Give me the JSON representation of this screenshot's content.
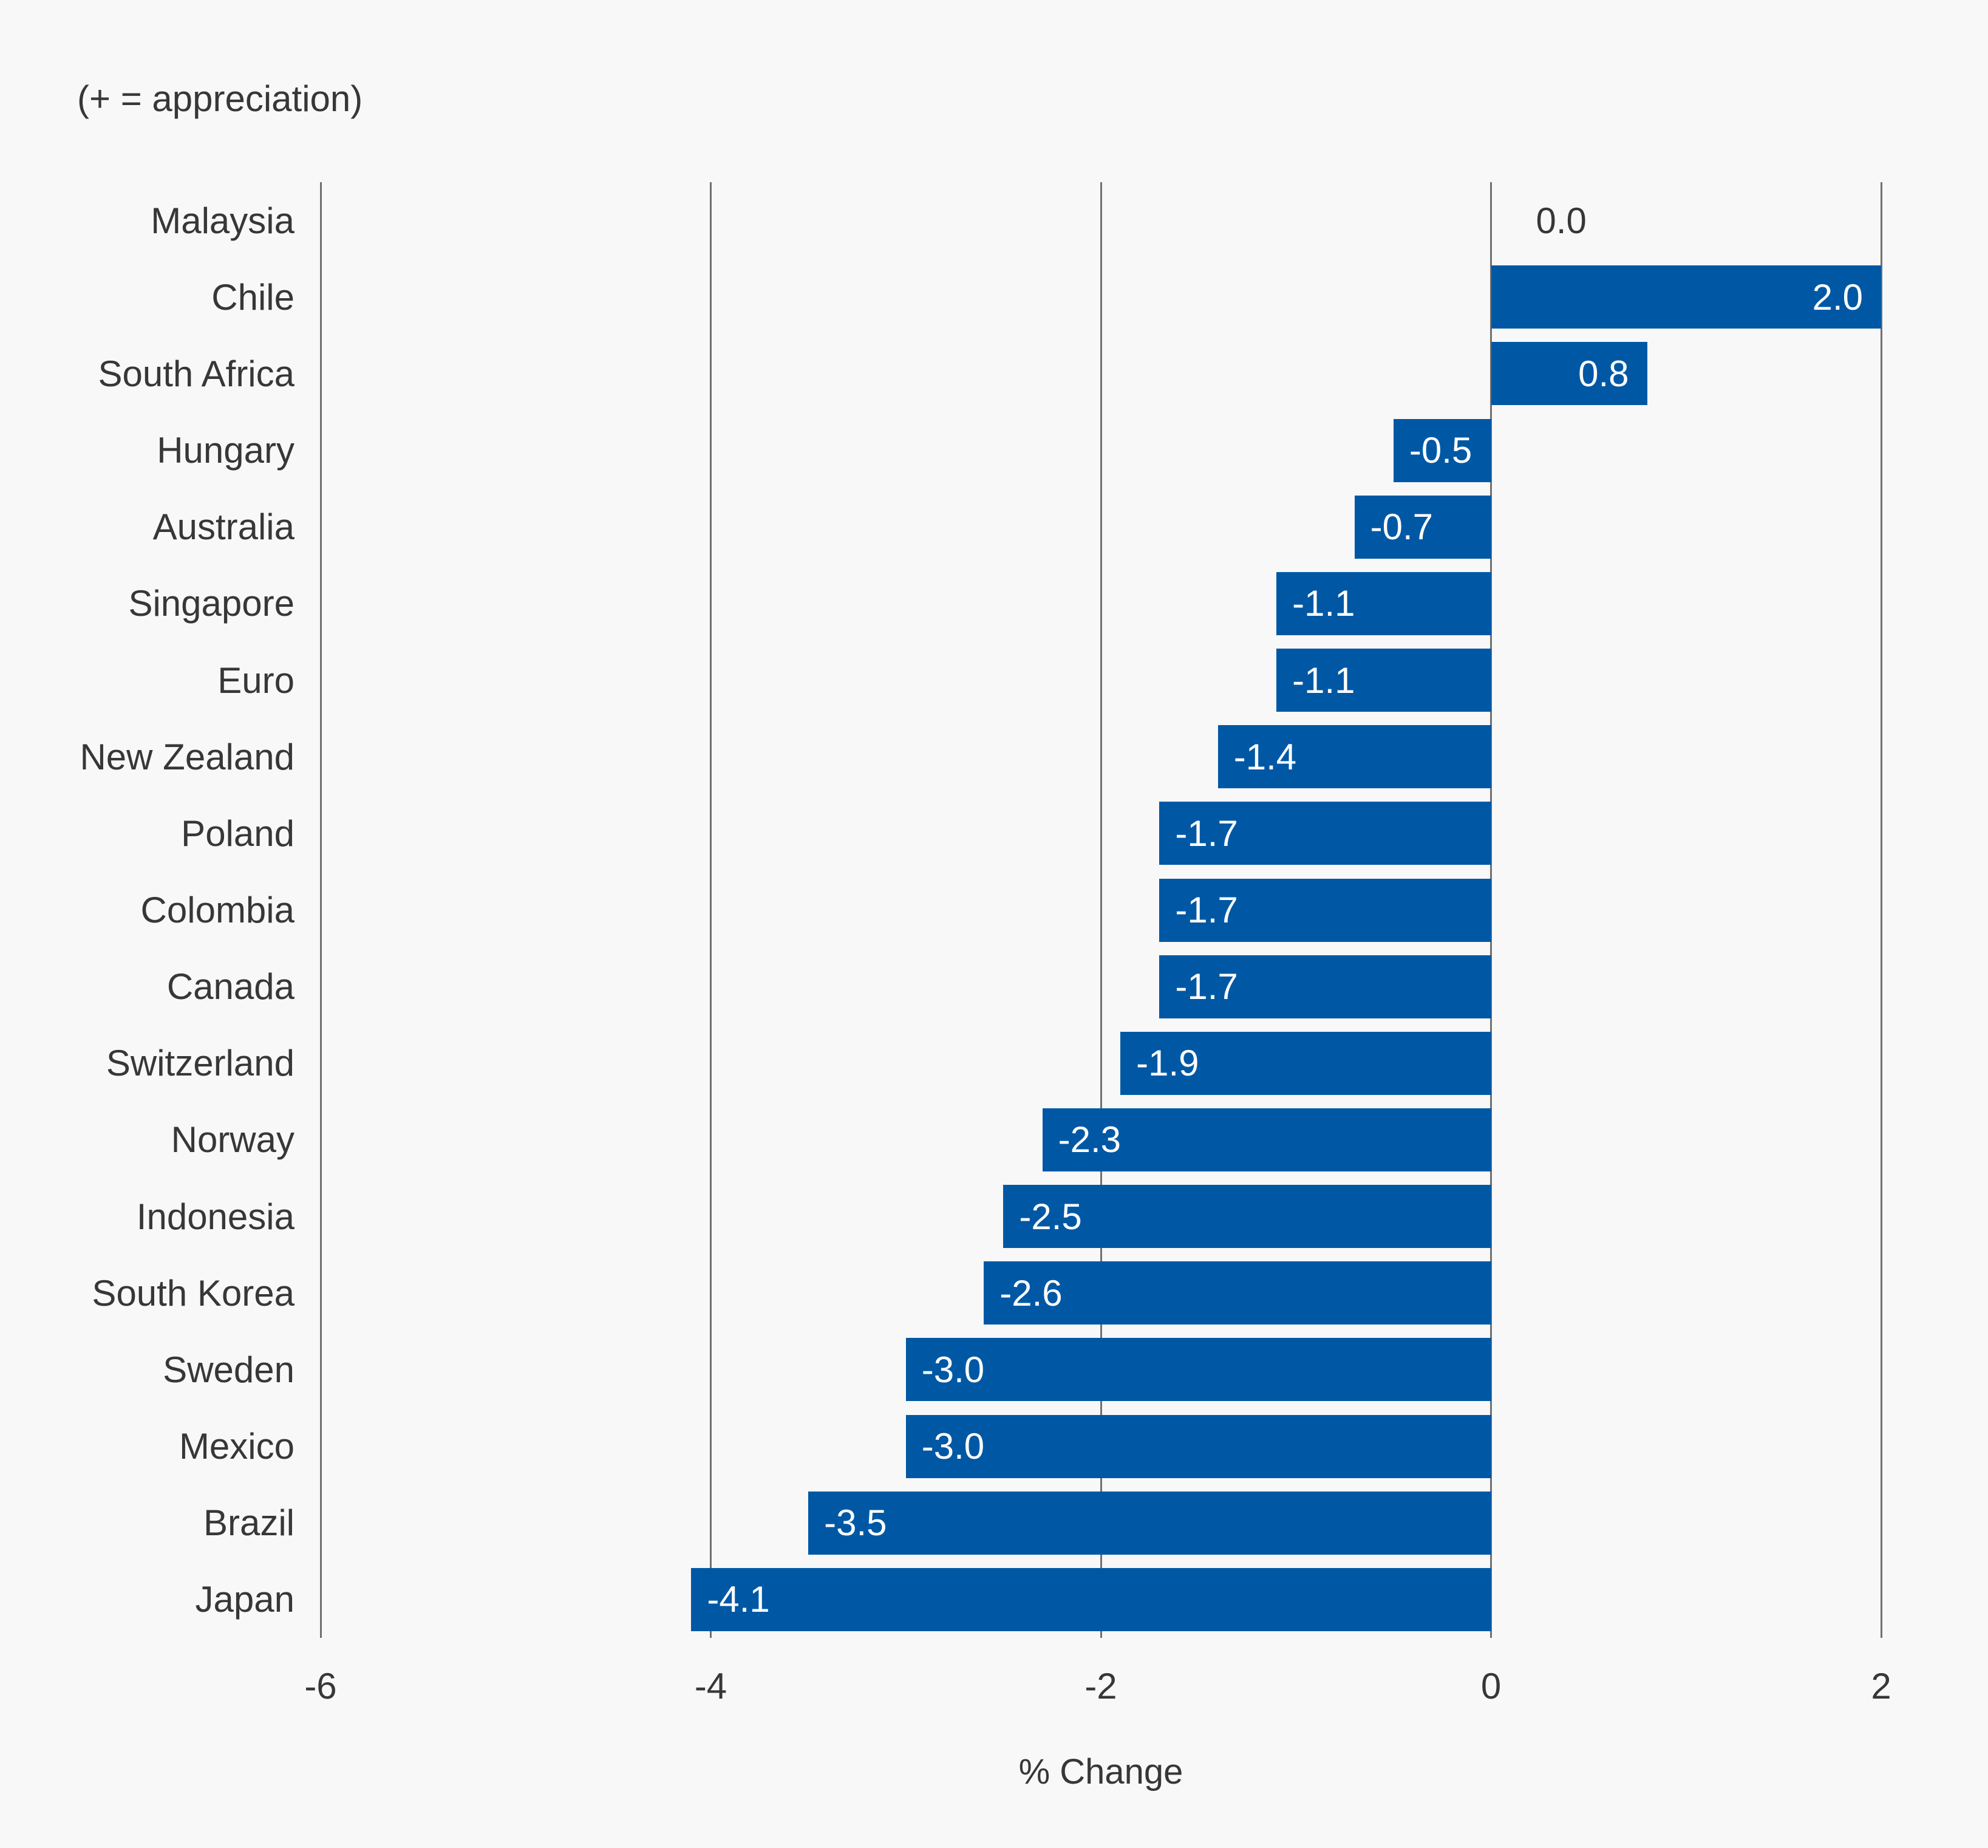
{
  "annotation": "(+ = appreciation)",
  "chart_data": {
    "type": "bar",
    "orientation": "horizontal",
    "title": "",
    "subtitle_note": "(+ = appreciation)",
    "categories": [
      "Malaysia",
      "Chile",
      "South Africa",
      "Hungary",
      "Australia",
      "Singapore",
      "Euro",
      "New Zealand",
      "Poland",
      "Colombia",
      "Canada",
      "Switzerland",
      "Norway",
      "Indonesia",
      "South Korea",
      "Sweden",
      "Mexico",
      "Brazil",
      "Japan"
    ],
    "values": [
      0.0,
      2.0,
      0.8,
      -0.5,
      -0.7,
      -1.1,
      -1.1,
      -1.4,
      -1.7,
      -1.7,
      -1.7,
      -1.9,
      -2.3,
      -2.5,
      -2.6,
      -3.0,
      -3.0,
      -3.5,
      -4.1
    ],
    "value_labels": [
      "0.0",
      "2.0",
      "0.8",
      "-0.5",
      "-0.7",
      "-1.1",
      "-1.1",
      "-1.4",
      "-1.7",
      "-1.7",
      "-1.7",
      "-1.9",
      "-2.3",
      "-2.5",
      "-2.6",
      "-3.0",
      "-3.0",
      "-3.5",
      "-4.1"
    ],
    "xlabel": "% Change",
    "ylabel": "",
    "xlim": [
      -6,
      2
    ],
    "xticks": [
      -6,
      -4,
      -2,
      0,
      2
    ],
    "xtick_labels": [
      "-6",
      "-4",
      "-2",
      "0",
      "2"
    ],
    "grid": "vertical",
    "legend": "none",
    "colors": {
      "bar": "#0058A5",
      "background": "#f8f8f8",
      "grid": "#707070",
      "text": "#373737",
      "value_inside": "#ffffff"
    }
  }
}
